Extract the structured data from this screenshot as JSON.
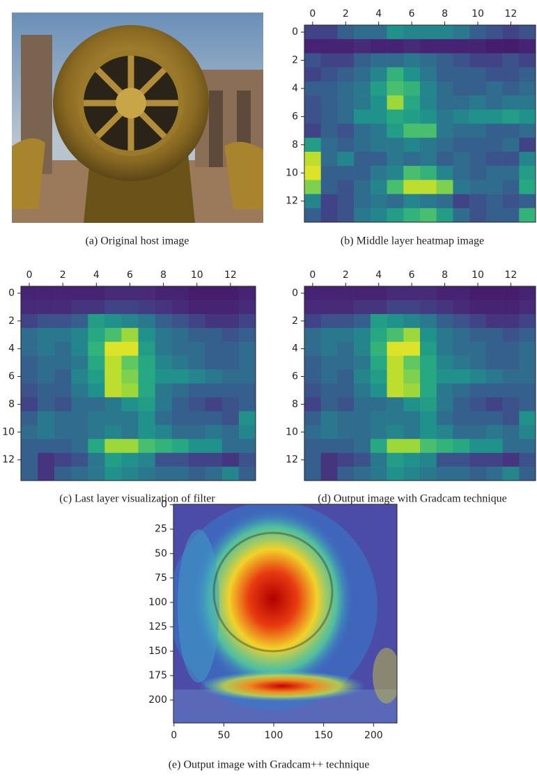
{
  "chart_data": [
    {
      "type": "image",
      "caption": "(a) Original host image"
    },
    {
      "type": "heatmap",
      "caption": "(b) Middle layer heatmap image",
      "colormap": "viridis",
      "xaxis": "top",
      "xlim": [
        -0.5,
        13.5
      ],
      "ylim": [
        13.5,
        -0.5
      ],
      "xticks": [
        0,
        2,
        4,
        6,
        8,
        10,
        12
      ],
      "yticks": [
        0,
        2,
        4,
        6,
        8,
        10,
        12
      ],
      "matrix": [
        [
          0.2,
          0.2,
          0.3,
          0.35,
          0.35,
          0.5,
          0.45,
          0.45,
          0.45,
          0.4,
          0.3,
          0.25,
          0.2,
          0.25
        ],
        [
          0.1,
          0.1,
          0.1,
          0.12,
          0.1,
          0.1,
          0.12,
          0.1,
          0.1,
          0.1,
          0.1,
          0.08,
          0.08,
          0.1
        ],
        [
          0.25,
          0.2,
          0.2,
          0.3,
          0.35,
          0.35,
          0.4,
          0.35,
          0.3,
          0.25,
          0.2,
          0.2,
          0.25,
          0.2
        ],
        [
          0.2,
          0.25,
          0.3,
          0.35,
          0.45,
          0.65,
          0.5,
          0.4,
          0.3,
          0.3,
          0.3,
          0.25,
          0.25,
          0.3
        ],
        [
          0.3,
          0.3,
          0.35,
          0.4,
          0.55,
          0.7,
          0.65,
          0.45,
          0.35,
          0.3,
          0.3,
          0.35,
          0.3,
          0.35
        ],
        [
          0.25,
          0.3,
          0.35,
          0.4,
          0.5,
          0.85,
          0.6,
          0.45,
          0.35,
          0.35,
          0.4,
          0.35,
          0.4,
          0.4
        ],
        [
          0.25,
          0.3,
          0.35,
          0.5,
          0.5,
          0.6,
          0.55,
          0.5,
          0.4,
          0.45,
          0.5,
          0.5,
          0.55,
          0.5
        ],
        [
          0.2,
          0.3,
          0.25,
          0.35,
          0.4,
          0.55,
          0.7,
          0.7,
          0.4,
          0.35,
          0.35,
          0.3,
          0.3,
          0.35
        ],
        [
          0.55,
          0.35,
          0.3,
          0.35,
          0.4,
          0.4,
          0.45,
          0.4,
          0.35,
          0.3,
          0.3,
          0.3,
          0.35,
          0.2
        ],
        [
          0.9,
          0.35,
          0.45,
          0.3,
          0.3,
          0.4,
          0.35,
          0.4,
          0.3,
          0.35,
          0.3,
          0.25,
          0.25,
          0.45
        ],
        [
          0.95,
          0.3,
          0.3,
          0.3,
          0.4,
          0.45,
          0.7,
          0.65,
          0.45,
          0.35,
          0.3,
          0.35,
          0.35,
          0.55
        ],
        [
          0.8,
          0.3,
          0.25,
          0.35,
          0.45,
          0.7,
          0.9,
          0.9,
          0.8,
          0.4,
          0.35,
          0.35,
          0.3,
          0.6
        ],
        [
          0.45,
          0.2,
          0.25,
          0.35,
          0.4,
          0.35,
          0.45,
          0.4,
          0.35,
          0.2,
          0.25,
          0.3,
          0.25,
          0.3
        ],
        [
          0.3,
          0.2,
          0.25,
          0.4,
          0.45,
          0.55,
          0.65,
          0.7,
          0.55,
          0.35,
          0.25,
          0.3,
          0.3,
          0.65
        ]
      ]
    },
    {
      "type": "heatmap",
      "caption": "(c) Last layer visualization of filter",
      "colormap": "viridis",
      "xaxis": "top",
      "xlim": [
        -0.5,
        13.5
      ],
      "ylim": [
        13.5,
        -0.5
      ],
      "xticks": [
        0,
        2,
        4,
        6,
        8,
        10,
        12
      ],
      "yticks": [
        0,
        2,
        4,
        6,
        8,
        10,
        12
      ],
      "matrix": [
        [
          0.1,
          0.1,
          0.1,
          0.1,
          0.1,
          0.12,
          0.12,
          0.12,
          0.1,
          0.1,
          0.08,
          0.08,
          0.08,
          0.1
        ],
        [
          0.12,
          0.12,
          0.12,
          0.15,
          0.15,
          0.2,
          0.2,
          0.18,
          0.15,
          0.12,
          0.1,
          0.1,
          0.1,
          0.12
        ],
        [
          0.2,
          0.25,
          0.25,
          0.3,
          0.55,
          0.5,
          0.45,
          0.4,
          0.3,
          0.25,
          0.2,
          0.15,
          0.15,
          0.2
        ],
        [
          0.35,
          0.4,
          0.4,
          0.45,
          0.6,
          0.7,
          0.85,
          0.5,
          0.4,
          0.35,
          0.3,
          0.3,
          0.25,
          0.3
        ],
        [
          0.35,
          0.4,
          0.35,
          0.45,
          0.65,
          0.95,
          0.95,
          0.55,
          0.4,
          0.35,
          0.35,
          0.3,
          0.3,
          0.35
        ],
        [
          0.3,
          0.35,
          0.35,
          0.4,
          0.6,
          0.9,
          0.75,
          0.6,
          0.45,
          0.4,
          0.35,
          0.3,
          0.3,
          0.35
        ],
        [
          0.3,
          0.35,
          0.3,
          0.45,
          0.55,
          0.9,
          0.8,
          0.6,
          0.5,
          0.5,
          0.45,
          0.4,
          0.35,
          0.35
        ],
        [
          0.25,
          0.3,
          0.3,
          0.4,
          0.5,
          0.9,
          0.85,
          0.6,
          0.4,
          0.35,
          0.3,
          0.3,
          0.3,
          0.3
        ],
        [
          0.2,
          0.3,
          0.25,
          0.35,
          0.35,
          0.4,
          0.5,
          0.55,
          0.4,
          0.3,
          0.25,
          0.2,
          0.25,
          0.3
        ],
        [
          0.3,
          0.4,
          0.35,
          0.35,
          0.4,
          0.4,
          0.4,
          0.5,
          0.35,
          0.3,
          0.3,
          0.3,
          0.25,
          0.5
        ],
        [
          0.35,
          0.4,
          0.35,
          0.35,
          0.4,
          0.45,
          0.4,
          0.5,
          0.45,
          0.35,
          0.35,
          0.4,
          0.35,
          0.45
        ],
        [
          0.3,
          0.3,
          0.3,
          0.35,
          0.6,
          0.85,
          0.85,
          0.7,
          0.65,
          0.6,
          0.5,
          0.5,
          0.35,
          0.35
        ],
        [
          0.3,
          0.15,
          0.2,
          0.25,
          0.4,
          0.55,
          0.5,
          0.45,
          0.25,
          0.25,
          0.2,
          0.2,
          0.15,
          0.25
        ],
        [
          0.3,
          0.15,
          0.3,
          0.35,
          0.4,
          0.5,
          0.45,
          0.4,
          0.35,
          0.35,
          0.3,
          0.35,
          0.45,
          0.3
        ]
      ]
    },
    {
      "type": "heatmap",
      "caption": "(d) Output image with Gradcam technique",
      "colormap": "viridis",
      "xaxis": "top",
      "xlim": [
        -0.5,
        13.5
      ],
      "ylim": [
        13.5,
        -0.5
      ],
      "xticks": [
        0,
        2,
        4,
        6,
        8,
        10,
        12
      ],
      "yticks": [
        0,
        2,
        4,
        6,
        8,
        10,
        12
      ],
      "matrix": [
        [
          0.1,
          0.1,
          0.1,
          0.1,
          0.1,
          0.12,
          0.12,
          0.12,
          0.1,
          0.1,
          0.08,
          0.08,
          0.08,
          0.1
        ],
        [
          0.12,
          0.12,
          0.12,
          0.15,
          0.15,
          0.2,
          0.2,
          0.18,
          0.15,
          0.12,
          0.1,
          0.1,
          0.1,
          0.12
        ],
        [
          0.2,
          0.25,
          0.25,
          0.3,
          0.55,
          0.5,
          0.45,
          0.4,
          0.3,
          0.25,
          0.2,
          0.15,
          0.15,
          0.2
        ],
        [
          0.35,
          0.4,
          0.4,
          0.45,
          0.6,
          0.7,
          0.85,
          0.5,
          0.4,
          0.35,
          0.3,
          0.3,
          0.25,
          0.3
        ],
        [
          0.35,
          0.4,
          0.35,
          0.45,
          0.65,
          0.95,
          0.95,
          0.55,
          0.4,
          0.35,
          0.35,
          0.3,
          0.3,
          0.35
        ],
        [
          0.3,
          0.35,
          0.35,
          0.4,
          0.6,
          0.9,
          0.75,
          0.6,
          0.45,
          0.4,
          0.35,
          0.3,
          0.3,
          0.35
        ],
        [
          0.3,
          0.35,
          0.3,
          0.45,
          0.55,
          0.9,
          0.8,
          0.6,
          0.5,
          0.5,
          0.45,
          0.4,
          0.35,
          0.35
        ],
        [
          0.25,
          0.3,
          0.3,
          0.4,
          0.5,
          0.9,
          0.85,
          0.6,
          0.4,
          0.35,
          0.3,
          0.3,
          0.3,
          0.3
        ],
        [
          0.2,
          0.3,
          0.25,
          0.35,
          0.35,
          0.4,
          0.5,
          0.55,
          0.4,
          0.3,
          0.25,
          0.2,
          0.25,
          0.3
        ],
        [
          0.3,
          0.4,
          0.35,
          0.35,
          0.4,
          0.4,
          0.4,
          0.5,
          0.35,
          0.3,
          0.3,
          0.3,
          0.25,
          0.5
        ],
        [
          0.35,
          0.4,
          0.35,
          0.35,
          0.4,
          0.45,
          0.4,
          0.5,
          0.45,
          0.35,
          0.35,
          0.4,
          0.35,
          0.45
        ],
        [
          0.3,
          0.3,
          0.3,
          0.35,
          0.6,
          0.85,
          0.85,
          0.7,
          0.65,
          0.6,
          0.5,
          0.5,
          0.35,
          0.35
        ],
        [
          0.3,
          0.15,
          0.2,
          0.25,
          0.4,
          0.55,
          0.5,
          0.45,
          0.25,
          0.25,
          0.2,
          0.2,
          0.15,
          0.25
        ],
        [
          0.3,
          0.15,
          0.3,
          0.35,
          0.4,
          0.5,
          0.45,
          0.4,
          0.35,
          0.35,
          0.3,
          0.35,
          0.45,
          0.3
        ]
      ]
    },
    {
      "type": "image",
      "caption": "(e) Output image with Gradcam++ technique",
      "xaxis": "bottom",
      "xlim": [
        -0.5,
        223.5
      ],
      "ylim": [
        223.5,
        -0.5
      ],
      "xticks": [
        0,
        50,
        100,
        150,
        200
      ],
      "yticks": [
        0,
        25,
        50,
        75,
        100,
        125,
        150,
        175,
        200
      ]
    }
  ]
}
